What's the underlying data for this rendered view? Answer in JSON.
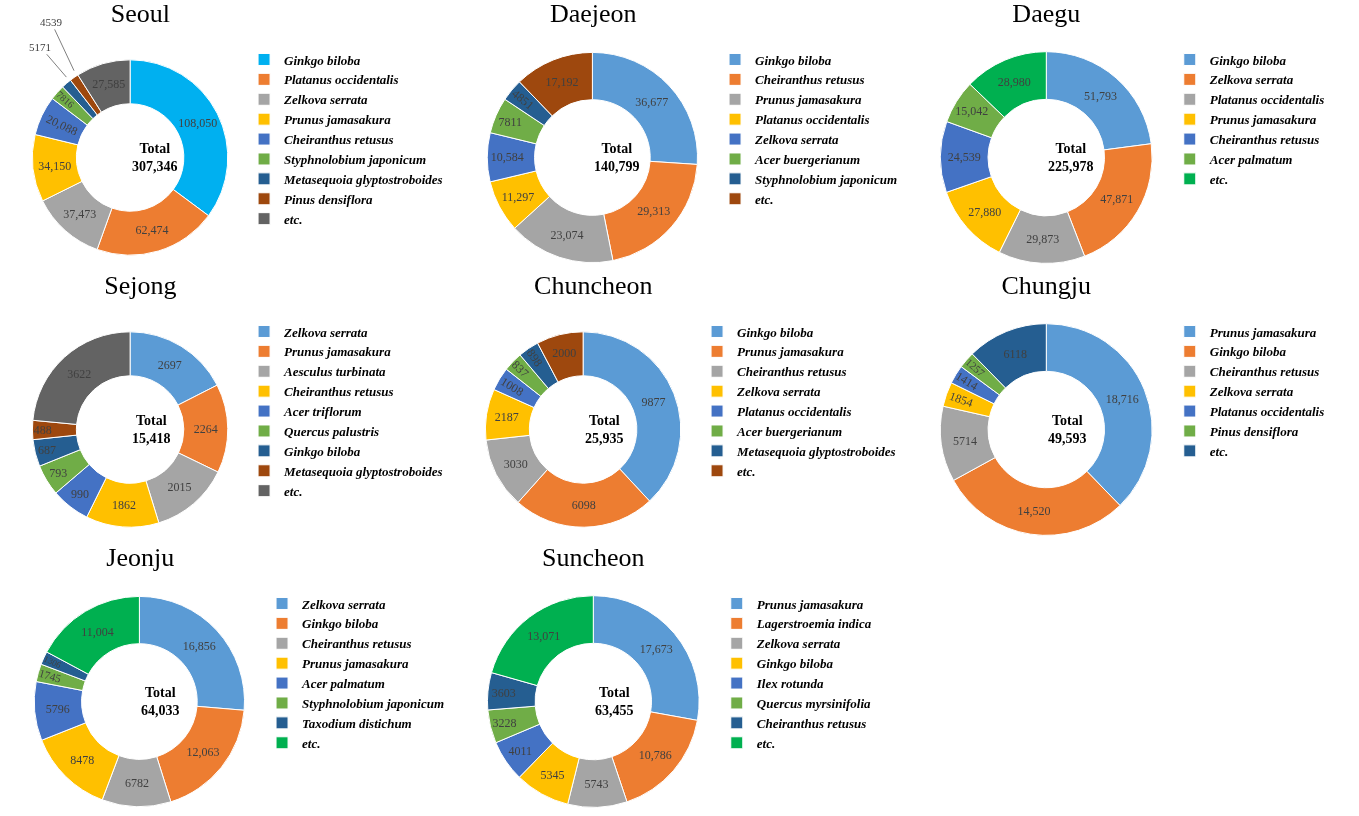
{
  "chart_data": [
    {
      "type": "donut",
      "title": "Seoul",
      "categories": [
        "Ginkgo biloba",
        "Platanus occidentalis",
        "Zelkova serrata",
        "Prunus jamasakura",
        "Cheiranthus retusus",
        "Styphnolobium japonicum",
        "Metasequoia glyptostroboides",
        "Pinus densiflora",
        "etc."
      ],
      "values": [
        108050,
        62474,
        37473,
        34150,
        20088,
        7816,
        5171,
        4539,
        27585
      ],
      "value_labels": [
        "108,050",
        "62,474",
        "37,473",
        "34,150",
        "20,088",
        "7816",
        "5171",
        "4539",
        "27,585"
      ],
      "colors": [
        "#00b0f0",
        "#ed7d31",
        "#a5a5a5",
        "#ffc000",
        "#4472c4",
        "#70ad47",
        "#255e91",
        "#9e480e",
        "#636363"
      ],
      "annotations": [
        "Total\n307,346"
      ],
      "legend": "right"
    },
    {
      "type": "donut",
      "title": "Daejeon",
      "categories": [
        "Ginkgo biloba",
        "Cheiranthus retusus",
        "Prunus jamasakura",
        "Platanus occidentalis",
        "Zelkova serrata",
        "Acer buergerianum",
        "Styphnolobium japonicum",
        "etc."
      ],
      "values": [
        36677,
        29313,
        23074,
        11297,
        10584,
        7811,
        4851,
        17192
      ],
      "value_labels": [
        "36,677",
        "29,313",
        "23,074",
        "11,297",
        "10,584",
        "7811",
        "4851",
        "17,192"
      ],
      "colors": [
        "#5b9bd5",
        "#ed7d31",
        "#a5a5a5",
        "#ffc000",
        "#4472c4",
        "#70ad47",
        "#255e91",
        "#9e480e"
      ],
      "annotations": [
        "Total\n140,799"
      ],
      "legend": "right"
    },
    {
      "type": "donut",
      "title": "Daegu",
      "categories": [
        "Ginkgo biloba",
        "Zelkova serrata",
        "Platanus occidentalis",
        "Prunus jamasakura",
        "Cheiranthus retusus",
        "Acer palmatum",
        "etc."
      ],
      "values": [
        51793,
        47871,
        29873,
        27880,
        24539,
        15042,
        28980
      ],
      "value_labels": [
        "51,793",
        "47,871",
        "29,873",
        "27,880",
        "24,539",
        "15,042",
        "28,980"
      ],
      "colors": [
        "#5b9bd5",
        "#ed7d31",
        "#a5a5a5",
        "#ffc000",
        "#4472c4",
        "#70ad47",
        "#00b050"
      ],
      "annotations": [
        "Total\n225,978"
      ],
      "legend": "right"
    },
    {
      "type": "donut",
      "title": "Sejong",
      "categories": [
        "Zelkova serrata",
        "Prunus jamasakura",
        "Aesculus turbinata",
        "Cheiranthus retusus",
        "Acer triflorum",
        "Quercus palustris",
        "Ginkgo biloba",
        "Metasequoia glyptostroboides",
        "etc."
      ],
      "values": [
        2697,
        2264,
        2015,
        1862,
        990,
        793,
        687,
        488,
        3622
      ],
      "value_labels": [
        "2697",
        "2264",
        "2015",
        "1862",
        "990",
        "793",
        "687",
        "488",
        "3622"
      ],
      "colors": [
        "#5b9bd5",
        "#ed7d31",
        "#a5a5a5",
        "#ffc000",
        "#4472c4",
        "#70ad47",
        "#255e91",
        "#9e480e",
        "#636363"
      ],
      "annotations": [
        "Total\n15,418"
      ],
      "legend": "right"
    },
    {
      "type": "donut",
      "title": "Chuncheon",
      "categories": [
        "Ginkgo biloba",
        "Prunus jamasakura",
        "Cheiranthus retusus",
        "Zelkova serrata",
        "Platanus occidentalis",
        "Acer buergerianum",
        "Metasequoia glyptostroboides",
        "etc."
      ],
      "values": [
        9877,
        6098,
        3030,
        2187,
        1008,
        837,
        898,
        2000
      ],
      "value_labels": [
        "9877",
        "6098",
        "3030",
        "2187",
        "1008",
        "837",
        "898",
        "2000"
      ],
      "colors": [
        "#5b9bd5",
        "#ed7d31",
        "#a5a5a5",
        "#ffc000",
        "#4472c4",
        "#70ad47",
        "#255e91",
        "#9e480e"
      ],
      "annotations": [
        "Total\n25,935"
      ],
      "legend": "right"
    },
    {
      "type": "donut",
      "title": "Chungju",
      "categories": [
        "Prunus jamasakura",
        "Ginkgo biloba",
        "Cheiranthus retusus",
        "Zelkova serrata",
        "Platanus occidentalis",
        "Pinus densiflora",
        "etc."
      ],
      "values": [
        18716,
        14520,
        5714,
        1854,
        1414,
        1257,
        6118
      ],
      "value_labels": [
        "18,716",
        "14,520",
        "5714",
        "1854",
        "1414",
        "1257",
        "6118"
      ],
      "colors": [
        "#5b9bd5",
        "#ed7d31",
        "#a5a5a5",
        "#ffc000",
        "#4472c4",
        "#70ad47",
        "#255e91"
      ],
      "annotations": [
        "Total\n49,593"
      ],
      "legend": "right"
    },
    {
      "type": "donut",
      "title": "Jeonju",
      "categories": [
        "Zelkova serrata",
        "Ginkgo biloba",
        "Cheiranthus retusus",
        "Prunus jamasakura",
        "Acer palmatum",
        "Styphnolobium japonicum",
        "Taxodium distichum",
        "etc."
      ],
      "values": [
        16856,
        12063,
        6782,
        8478,
        5796,
        1745,
        1306,
        11004
      ],
      "value_labels": [
        "16,856",
        "12,063",
        "6782",
        "8478",
        "5796",
        "1745",
        "1306",
        "11,004"
      ],
      "colors": [
        "#5b9bd5",
        "#ed7d31",
        "#a5a5a5",
        "#ffc000",
        "#4472c4",
        "#70ad47",
        "#255e91",
        "#00b050"
      ],
      "annotations": [
        "Total\n64,033"
      ],
      "legend": "right"
    },
    {
      "type": "donut",
      "title": "Suncheon",
      "categories": [
        "Prunus jamasakura",
        "Lagerstroemia indica",
        "Zelkova serrata",
        "Ginkgo biloba",
        "Ilex rotunda",
        "Quercus myrsinifolia",
        "Cheiranthus retusus",
        "etc."
      ],
      "values": [
        17673,
        10786,
        5743,
        5345,
        4011,
        3228,
        3603,
        13071
      ],
      "value_labels": [
        "17,673",
        "10,786",
        "5743",
        "5345",
        "4011",
        "3228",
        "3603",
        "13,071"
      ],
      "colors": [
        "#5b9bd5",
        "#ed7d31",
        "#a5a5a5",
        "#ffc000",
        "#4472c4",
        "#70ad47",
        "#255e91",
        "#00b050"
      ],
      "annotations": [
        "Total\n63,455"
      ],
      "legend": "right"
    }
  ]
}
